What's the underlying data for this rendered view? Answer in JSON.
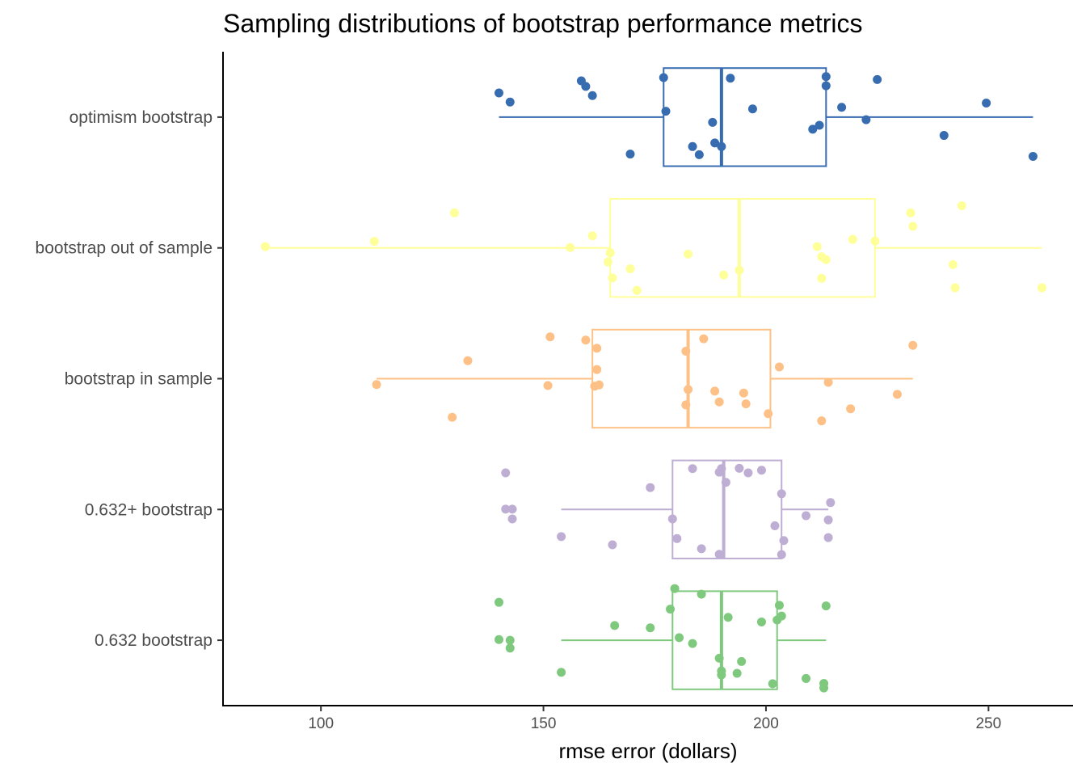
{
  "chart_data": {
    "type": "boxplot",
    "title": "Sampling distributions of bootstrap performance metrics",
    "xlabel": "rmse error (dollars)",
    "ylabel": "",
    "xlim": [
      78,
      269
    ],
    "xticks": [
      100,
      150,
      200,
      250
    ],
    "grid": false,
    "legend": "none",
    "orientation": "horizontal",
    "categories": [
      "optimism bootstrap",
      "bootstrap out of sample",
      "bootstrap in sample",
      "0.632+ bootstrap",
      "0.632 bootstrap"
    ],
    "series": [
      {
        "name": "optimism bootstrap",
        "color": "#386cb0",
        "box": {
          "min": 140,
          "q1": 177,
          "median": 190,
          "q3": 213.5,
          "max": 260
        },
        "points": [
          [
            140,
            0.74
          ],
          [
            142.5,
            0.46
          ],
          [
            158.5,
            1.11
          ],
          [
            159.5,
            0.94
          ],
          [
            161,
            0.66
          ],
          [
            169.5,
            -1.13
          ],
          [
            177,
            1.21
          ],
          [
            177.5,
            0.18
          ],
          [
            183.5,
            -0.9
          ],
          [
            185,
            -1.15
          ],
          [
            188,
            -0.16
          ],
          [
            188.5,
            -0.79
          ],
          [
            190,
            -0.9
          ],
          [
            192,
            1.19
          ],
          [
            197,
            0.25
          ],
          [
            210.5,
            -0.37
          ],
          [
            212,
            -0.25
          ],
          [
            213.5,
            1.24
          ],
          [
            213.5,
            0.96
          ],
          [
            217,
            0.3
          ],
          [
            222.5,
            -0.08
          ],
          [
            225,
            1.15
          ],
          [
            240,
            -0.56
          ],
          [
            249.5,
            0.43
          ],
          [
            260,
            -1.2
          ]
        ]
      },
      {
        "name": "bootstrap out of sample",
        "color": "#ffff99",
        "box": {
          "min": 87.5,
          "q1": 165,
          "median": 194,
          "q3": 224.5,
          "max": 262
        },
        "points": [
          [
            87.5,
            0.04
          ],
          [
            112,
            0.2
          ],
          [
            130,
            1.07
          ],
          [
            156,
            0.01
          ],
          [
            161,
            0.37
          ],
          [
            164.5,
            -0.43
          ],
          [
            165,
            -0.15
          ],
          [
            165.5,
            -0.92
          ],
          [
            169.5,
            -0.64
          ],
          [
            171,
            -1.3
          ],
          [
            182.5,
            -0.19
          ],
          [
            190.5,
            -0.83
          ],
          [
            194,
            -0.68
          ],
          [
            211.5,
            0.04
          ],
          [
            212.5,
            -0.93
          ],
          [
            212.5,
            -0.27
          ],
          [
            213.5,
            -0.36
          ],
          [
            219.5,
            0.26
          ],
          [
            224.5,
            0.21
          ],
          [
            232.5,
            1.07
          ],
          [
            233,
            0.66
          ],
          [
            242,
            -0.51
          ],
          [
            242.5,
            -1.22
          ],
          [
            244,
            1.29
          ],
          [
            262,
            -1.22
          ]
        ]
      },
      {
        "name": "bootstrap in sample",
        "color": "#fdc086",
        "box": {
          "min": 112.5,
          "q1": 161,
          "median": 182.5,
          "q3": 201,
          "max": 233
        },
        "points": [
          [
            112.5,
            -0.18
          ],
          [
            129.5,
            -1.18
          ],
          [
            133,
            0.55
          ],
          [
            151,
            -0.21
          ],
          [
            151.5,
            1.28
          ],
          [
            159.5,
            1.18
          ],
          [
            161.5,
            -0.23
          ],
          [
            162,
            0.28
          ],
          [
            162,
            0.93
          ],
          [
            162.5,
            -0.19
          ],
          [
            182,
            -0.8
          ],
          [
            182,
            0.84
          ],
          [
            182.5,
            -0.33
          ],
          [
            186,
            1.22
          ],
          [
            188.5,
            -0.38
          ],
          [
            189.5,
            -0.71
          ],
          [
            195,
            -0.44
          ],
          [
            195.5,
            -0.77
          ],
          [
            200.5,
            -1.07
          ],
          [
            203,
            0.36
          ],
          [
            212.5,
            -1.29
          ],
          [
            214,
            -0.11
          ],
          [
            219,
            -0.92
          ],
          [
            229.5,
            -0.48
          ],
          [
            233,
            1.02
          ]
        ]
      },
      {
        "name": "0.632+ bootstrap",
        "color": "#beaed4",
        "box": {
          "min": 154,
          "q1": 179,
          "median": 190.5,
          "q3": 203.5,
          "max": 214
        },
        "points": [
          [
            141.5,
            1.12
          ],
          [
            141.5,
            0.01
          ],
          [
            143,
            0.01
          ],
          [
            143,
            -0.29
          ],
          [
            154,
            -0.83
          ],
          [
            165.5,
            -1.08
          ],
          [
            174,
            0.67
          ],
          [
            179,
            -0.29
          ],
          [
            180,
            -0.89
          ],
          [
            183.5,
            1.25
          ],
          [
            185.5,
            -1.2
          ],
          [
            189.5,
            -1.37
          ],
          [
            189.5,
            1.14
          ],
          [
            190,
            1.25
          ],
          [
            191,
            0.83
          ],
          [
            194,
            1.26
          ],
          [
            196,
            1.12
          ],
          [
            199,
            1.2
          ],
          [
            202,
            -0.5
          ],
          [
            203.5,
            0.48
          ],
          [
            203.5,
            -1.38
          ],
          [
            204,
            -0.95
          ],
          [
            209,
            -0.19
          ],
          [
            214,
            -0.86
          ],
          [
            214,
            -0.32
          ],
          [
            214.5,
            0.21
          ]
        ]
      },
      {
        "name": "0.632 bootstrap",
        "color": "#7fc97f",
        "box": {
          "min": 154,
          "q1": 179,
          "median": 190,
          "q3": 202.5,
          "max": 213.5
        },
        "points": [
          [
            140,
            1.16
          ],
          [
            140,
            0.02
          ],
          [
            142.5,
            -0.24
          ],
          [
            142.5,
            0.0
          ],
          [
            154,
            -0.98
          ],
          [
            166,
            0.45
          ],
          [
            174,
            0.38
          ],
          [
            178.5,
            0.95
          ],
          [
            179.5,
            1.58
          ],
          [
            180.5,
            0.08
          ],
          [
            183.5,
            -0.1
          ],
          [
            185.5,
            1.41
          ],
          [
            189.5,
            -0.55
          ],
          [
            190,
            -1.06
          ],
          [
            190,
            -0.94
          ],
          [
            191.5,
            0.7
          ],
          [
            193.5,
            -1.01
          ],
          [
            194.5,
            -0.65
          ],
          [
            199,
            0.56
          ],
          [
            201.5,
            -1.33
          ],
          [
            202.5,
            0.62
          ],
          [
            203,
            1.07
          ],
          [
            203.5,
            0.74
          ],
          [
            209,
            -1.17
          ],
          [
            213,
            -1.32
          ],
          [
            213,
            -1.46
          ],
          [
            213.5,
            1.05
          ]
        ]
      }
    ]
  }
}
